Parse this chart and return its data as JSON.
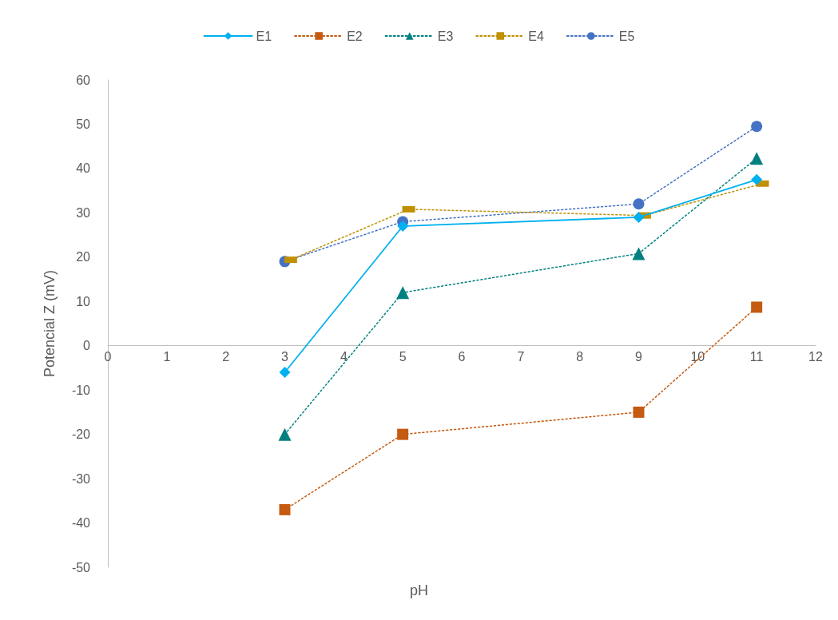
{
  "chart_data": {
    "type": "line",
    "xlabel": "pH",
    "ylabel": "Potencial Z (mV)",
    "xlim": [
      0,
      12
    ],
    "xticks": [
      0,
      1,
      2,
      3,
      4,
      5,
      6,
      7,
      8,
      9,
      10,
      11,
      12
    ],
    "ylim": [
      -50,
      60
    ],
    "yticks": [
      -50,
      -40,
      -30,
      -20,
      -10,
      0,
      10,
      20,
      30,
      40,
      50,
      60
    ],
    "grid": false,
    "legend": "top",
    "series": [
      {
        "name": "E1",
        "color": "#00b0f0",
        "x": [
          3,
          5,
          9,
          11
        ],
        "values": [
          -6,
          27,
          29,
          37.5
        ],
        "marker": "diamond",
        "line_style": "solid"
      },
      {
        "name": "E2",
        "color": "#c55a11",
        "x": [
          3,
          5,
          9,
          11
        ],
        "values": [
          -37,
          -20,
          -15,
          8.7
        ],
        "marker": "square",
        "line_style": "dotted"
      },
      {
        "name": "E3",
        "color": "#008080",
        "x": [
          3,
          5,
          9,
          11
        ],
        "values": [
          -20,
          12,
          20.8,
          42.3
        ],
        "marker": "triangle",
        "line_style": "dotted"
      },
      {
        "name": "E4",
        "color": "#bf9000",
        "x": [
          3.1,
          5.1,
          9.1,
          11.1
        ],
        "values": [
          19.4,
          30.8,
          29.4,
          36.6
        ],
        "marker": "square",
        "line_style": "dotted"
      },
      {
        "name": "E5",
        "color": "#4472c4",
        "x": [
          3,
          5,
          9,
          11
        ],
        "values": [
          19,
          28,
          32,
          49.5
        ],
        "marker": "circle",
        "line_style": "dotted"
      }
    ]
  }
}
